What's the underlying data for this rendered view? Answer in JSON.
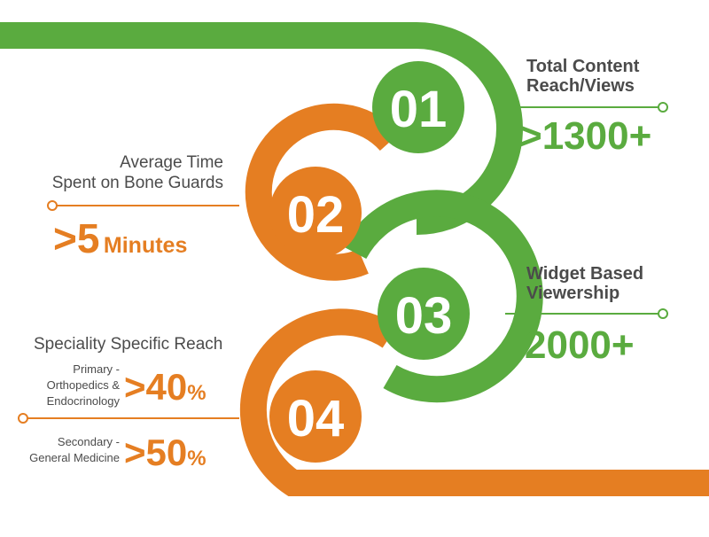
{
  "colors": {
    "green": "#5aab3f",
    "orange": "#e57e22",
    "text": "#4b4b4b",
    "background": "#ffffff"
  },
  "steps": [
    {
      "number": "01",
      "color": "green",
      "label_line1": "Total Content",
      "label_line2": "Reach/Views",
      "value": ">1300+"
    },
    {
      "number": "02",
      "color": "orange",
      "label_line1": "Average Time",
      "label_line2": "Spent on Bone Guards",
      "value": ">5",
      "value_unit": "Minutes"
    },
    {
      "number": "03",
      "color": "green",
      "label_line1": "Widget Based",
      "label_line2": "Viewership",
      "value": "2000+"
    },
    {
      "number": "04",
      "color": "orange",
      "heading": "Speciality Specific Reach",
      "primary": {
        "line1": "Primary -",
        "line2": "Orthopedics &",
        "line3": "Endocrinology",
        "value": ">40",
        "unit": "%"
      },
      "secondary": {
        "line1": "Secondary -",
        "line2": "General Medicine",
        "value": ">50",
        "unit": "%"
      }
    }
  ]
}
